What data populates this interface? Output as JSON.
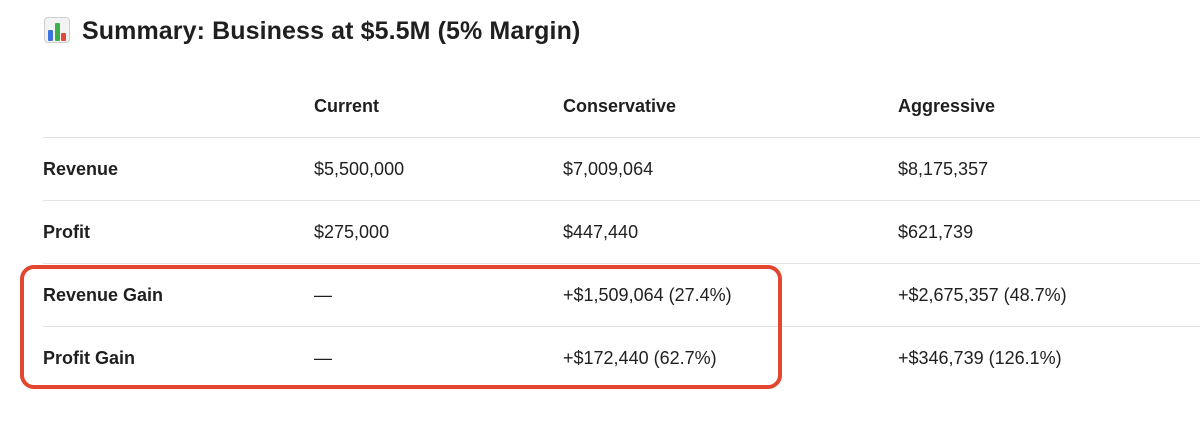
{
  "title": {
    "icon": "bar-chart-emoji-icon",
    "text": "Summary: Business at $5.5M (5% Margin)"
  },
  "table": {
    "columns": [
      "",
      "Current",
      "Conservative",
      "Aggressive"
    ],
    "rows": [
      {
        "label": "Revenue",
        "current": "$5,500,000",
        "conservative": "$7,009,064",
        "aggressive": "$8,175,357"
      },
      {
        "label": "Profit",
        "current": "$275,000",
        "conservative": "$447,440",
        "aggressive": "$621,739"
      },
      {
        "label": "Revenue Gain",
        "current": "—",
        "conservative": "+$1,509,064 (27.4%)",
        "aggressive": "+$2,675,357 (48.7%)"
      },
      {
        "label": "Profit Gain",
        "current": "—",
        "conservative": "+$172,440 (62.7%)",
        "aggressive": "+$346,739 (126.1%)"
      }
    ]
  },
  "highlight": {
    "color": "#e2462f",
    "rows": [
      "Revenue Gain",
      "Profit Gain"
    ]
  }
}
